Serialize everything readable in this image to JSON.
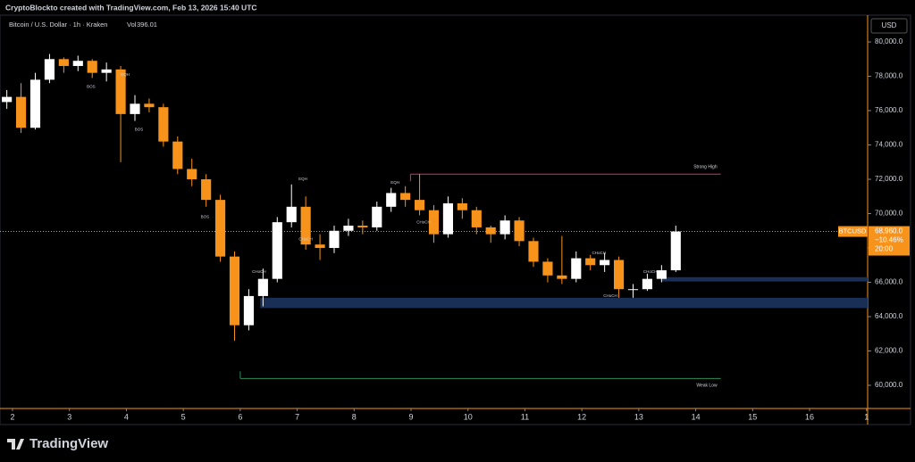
{
  "header": {
    "credit": "CryptoBlockto created with TradingView.com, Feb 13, 2026 15:40 UTC",
    "brand": "TradingView"
  },
  "chart_data": {
    "type": "candlestick",
    "title": "Bitcoin / U.S. Dollar · 1h · Kraken",
    "volume_label": "Vol",
    "volume": "396.01",
    "currency": "USD",
    "x": [
      1.9,
      2.15,
      2.4,
      2.65,
      2.9,
      3.15,
      3.4,
      3.65,
      3.9,
      4.15,
      4.4,
      4.65,
      4.9,
      5.15,
      5.4,
      5.65,
      5.9,
      6.15,
      6.4,
      6.65,
      6.9,
      7.15,
      7.4,
      7.65,
      7.9,
      8.15,
      8.4,
      8.65,
      8.9,
      9.15,
      9.4,
      9.65,
      9.9,
      10.15,
      10.4,
      10.65,
      10.9,
      11.15,
      11.4,
      11.65,
      11.9,
      12.15,
      12.4,
      12.65,
      12.9,
      13.15,
      13.4,
      13.65
    ],
    "open": [
      76500,
      76800,
      75000,
      77800,
      79000,
      78600,
      78900,
      78200,
      78400,
      75800,
      76400,
      76200,
      74200,
      72600,
      72000,
      70800,
      67500,
      63500,
      65200,
      66200,
      69500,
      70400,
      68200,
      68000,
      69000,
      69300,
      69200,
      70400,
      71200,
      70800,
      70200,
      68800,
      70600,
      70200,
      69200,
      68800,
      69600,
      68400,
      67200,
      66400,
      66200,
      67400,
      67000,
      67300,
      65600,
      65600,
      66200,
      66700
    ],
    "high": [
      77200,
      77600,
      78200,
      79300,
      79100,
      79200,
      79000,
      78800,
      78600,
      76900,
      76700,
      76400,
      74500,
      73200,
      72300,
      71100,
      67800,
      65600,
      66800,
      69800,
      71700,
      71000,
      68800,
      69300,
      69700,
      69600,
      70700,
      71500,
      71600,
      72300,
      70500,
      71000,
      70900,
      70400,
      69300,
      69900,
      69800,
      68600,
      67400,
      68700,
      67800,
      67600,
      67700,
      67500,
      65900,
      66500,
      67000,
      69300
    ],
    "low": [
      76100,
      74700,
      74900,
      77600,
      78200,
      78300,
      77900,
      77700,
      73000,
      75400,
      75900,
      73900,
      72300,
      71600,
      70400,
      67200,
      62600,
      63200,
      64600,
      66000,
      69200,
      67900,
      67300,
      67700,
      68700,
      68800,
      69000,
      70100,
      70400,
      69900,
      68300,
      68600,
      69700,
      68800,
      68300,
      68500,
      68100,
      66900,
      66000,
      65900,
      66000,
      66700,
      66600,
      65100,
      65100,
      65500,
      66000,
      66600
    ],
    "close": [
      76800,
      75000,
      77800,
      79000,
      78600,
      78900,
      78200,
      78400,
      75800,
      76400,
      76200,
      74200,
      72600,
      72000,
      70800,
      67500,
      63500,
      65200,
      66200,
      69500,
      70400,
      68200,
      68000,
      69000,
      69300,
      69200,
      70400,
      71200,
      70800,
      70200,
      68800,
      70600,
      70200,
      69200,
      68800,
      69600,
      68400,
      67200,
      66400,
      66200,
      67400,
      67000,
      67300,
      65600,
      65600,
      66200,
      66700,
      68960
    ],
    "up_color": "#ffffff",
    "down_color": "#f7931a",
    "xlim": [
      1.78,
      17.02
    ],
    "xticks": [
      2,
      3,
      4,
      5,
      6,
      7,
      8,
      9,
      10,
      11,
      12,
      13,
      14,
      15,
      16,
      {
        "value": 17,
        "label": "1"
      }
    ],
    "ylim": [
      58650,
      81560
    ],
    "yticks": [
      {
        "value": 60000,
        "label": "60,000.0"
      },
      {
        "value": 62000,
        "label": "62,000.0"
      },
      {
        "value": 64000,
        "label": "64,000.0"
      },
      {
        "value": 66000,
        "label": "66,000.0"
      },
      {
        "value": 68000,
        "label": "68,000.0"
      },
      {
        "value": 70000,
        "label": "70,000.0"
      },
      {
        "value": 72000,
        "label": "72,000.0"
      },
      {
        "value": 74000,
        "label": "74,000.0"
      },
      {
        "value": 76000,
        "label": "76,000.0"
      },
      {
        "value": 78000,
        "label": "78,000.0"
      },
      {
        "value": 80000,
        "label": "80,000.0"
      }
    ],
    "last_price": {
      "symbol": "BTCUSD",
      "value": 68960,
      "label": "68,960.0",
      "change": "−10.46%",
      "countdown": "20:00",
      "color": "#f7931a"
    },
    "levels": [
      {
        "label": "Strong High",
        "value": 72300,
        "from": 8.99,
        "to": 14.44,
        "color": "#d6336c"
      },
      {
        "label": "Weak Low",
        "value": 60400,
        "from": 6.0,
        "to": 14.44,
        "color": "#2e8b57"
      }
    ],
    "zones": [
      {
        "from": 6.35,
        "low": 64500,
        "high": 65100
      },
      {
        "from": 13.4,
        "low": 66050,
        "high": 66300
      }
    ],
    "zone_color": "#1a2f55",
    "labels": [
      {
        "text": "BOS",
        "x": 3.38,
        "y": 77400,
        "color": "#e0443c"
      },
      {
        "text": "EQH",
        "x": 3.98,
        "y": 78100,
        "color": "#e0443c"
      },
      {
        "text": "BOS",
        "x": 4.22,
        "y": 74900,
        "color": "#e0443c"
      },
      {
        "text": "BOS",
        "x": 5.38,
        "y": 69800,
        "color": "#e0443c"
      },
      {
        "text": "CHoCH",
        "x": 6.33,
        "y": 66600,
        "color": "#2bb3a0"
      },
      {
        "text": "EQH",
        "x": 7.1,
        "y": 72000,
        "color": "#e0443c"
      },
      {
        "text": "CHoCH",
        "x": 7.15,
        "y": 68500,
        "color": "#e0443c"
      },
      {
        "text": "EQH",
        "x": 8.72,
        "y": 71800,
        "color": "#e0443c"
      },
      {
        "text": "CHoCH",
        "x": 9.22,
        "y": 69500,
        "color": "#e0443c"
      },
      {
        "text": "CHoCH",
        "x": 12.3,
        "y": 67700,
        "color": "#2bb3a0"
      },
      {
        "text": "CHoCH",
        "x": 12.5,
        "y": 65200,
        "color": "#e0443c"
      },
      {
        "text": "CHoCH",
        "x": 13.2,
        "y": 66600,
        "color": "#2bb3a0"
      }
    ]
  }
}
